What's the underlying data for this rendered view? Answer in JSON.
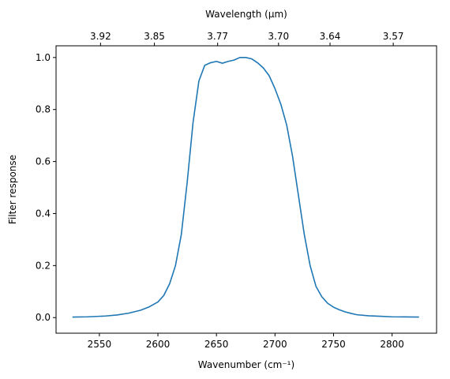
{
  "chart_data": {
    "type": "line",
    "xlabel": "Wavenumber (cm⁻¹)",
    "ylabel": "Filter response",
    "top_xlabel": "Wavelength (μm)",
    "xlim": [
      2513,
      2838
    ],
    "ylim": [
      -0.06,
      1.045
    ],
    "x_ticks": [
      2550,
      2600,
      2650,
      2700,
      2750,
      2800
    ],
    "x_tick_labels": [
      "2550",
      "2600",
      "2650",
      "2700",
      "2750",
      "2800"
    ],
    "y_ticks": [
      0.0,
      0.2,
      0.4,
      0.6,
      0.8,
      1.0
    ],
    "y_tick_labels": [
      "0.0",
      "0.2",
      "0.4",
      "0.6",
      "0.8",
      "1.0"
    ],
    "top_ticks": [
      {
        "wavenumber": 2551,
        "label": "3.92"
      },
      {
        "wavenumber": 2597,
        "label": "3.85"
      },
      {
        "wavenumber": 2651,
        "label": "3.77"
      },
      {
        "wavenumber": 2703,
        "label": "3.70"
      },
      {
        "wavenumber": 2747,
        "label": "3.64"
      },
      {
        "wavenumber": 2801,
        "label": "3.57"
      }
    ],
    "grid": false,
    "color": "#1f77b4",
    "series": [
      {
        "x": [
          2527,
          2540,
          2555,
          2565,
          2575,
          2585,
          2592,
          2600,
          2605,
          2610,
          2615,
          2620,
          2625,
          2630,
          2635,
          2640,
          2645,
          2650,
          2655,
          2660,
          2665,
          2670,
          2675,
          2680,
          2685,
          2690,
          2695,
          2700,
          2705,
          2710,
          2715,
          2720,
          2725,
          2730,
          2735,
          2740,
          2745,
          2750,
          2755,
          2760,
          2765,
          2770,
          2780,
          2790,
          2800,
          2823
        ],
        "y": [
          0.002,
          0.003,
          0.006,
          0.01,
          0.017,
          0.028,
          0.04,
          0.06,
          0.085,
          0.13,
          0.2,
          0.32,
          0.52,
          0.75,
          0.91,
          0.97,
          0.98,
          0.985,
          0.978,
          0.985,
          0.99,
          1.0,
          1.0,
          0.995,
          0.98,
          0.96,
          0.93,
          0.88,
          0.82,
          0.74,
          0.62,
          0.47,
          0.32,
          0.2,
          0.12,
          0.08,
          0.055,
          0.04,
          0.03,
          0.022,
          0.016,
          0.011,
          0.007,
          0.005,
          0.003,
          0.002
        ]
      }
    ]
  }
}
